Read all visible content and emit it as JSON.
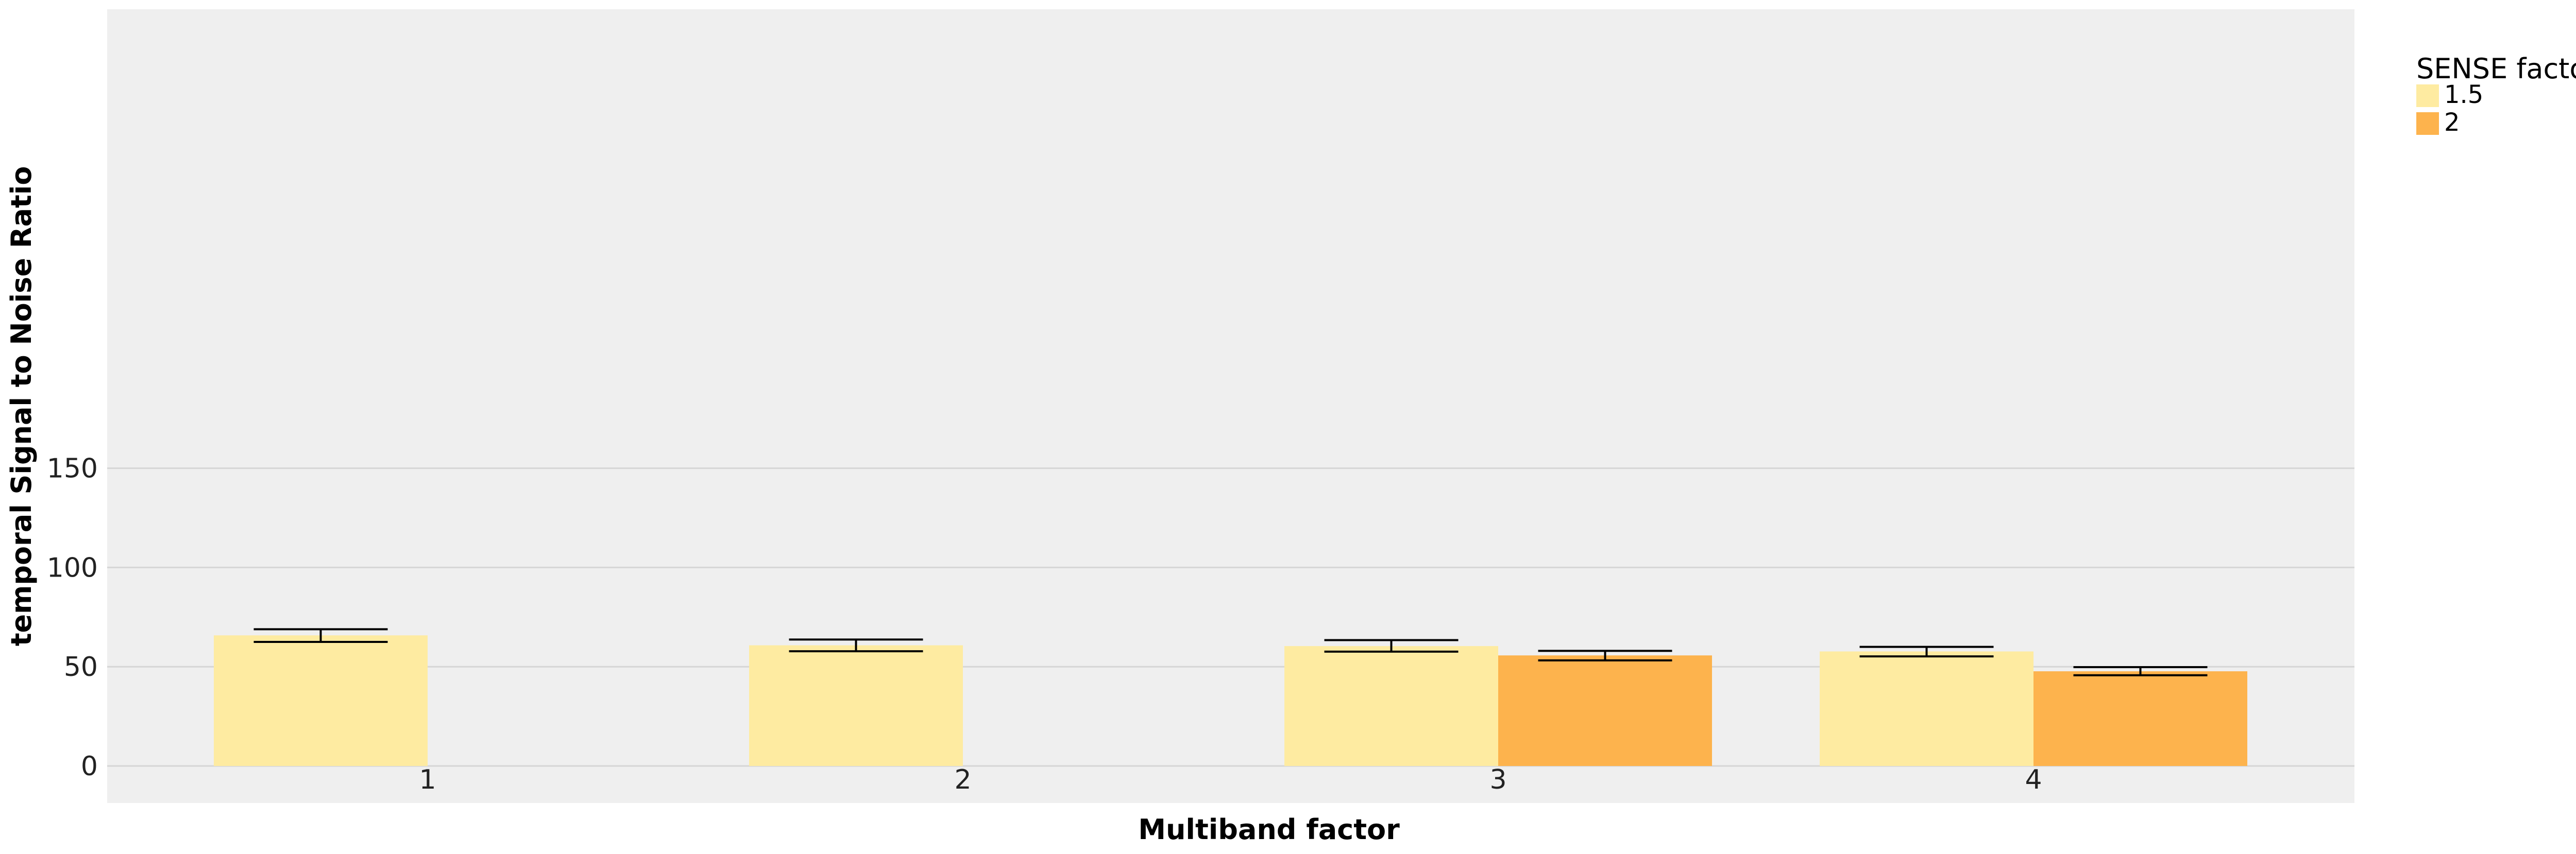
{
  "chart_data": {
    "type": "bar",
    "xlabel": "Multiband factor",
    "ylabel": "temporal Signal to Noise Ratio",
    "categories": [
      "1",
      "2",
      "3",
      "4"
    ],
    "ylim": [
      0,
      190
    ],
    "yticks": [
      0,
      50,
      100,
      150
    ],
    "grid": true,
    "legend": {
      "title": "SENSE factor",
      "placement": "right"
    },
    "series": [
      {
        "name": "1.5",
        "color": "#FEEBA1",
        "values": [
          65.8,
          60.8,
          60.4,
          57.7
        ],
        "error_low": [
          62.5,
          57.8,
          57.6,
          55.2
        ],
        "error_high": [
          68.9,
          63.7,
          63.4,
          60.0
        ]
      },
      {
        "name": "2",
        "color": "#FDB34D",
        "values": [
          null,
          null,
          55.7,
          47.7
        ],
        "error_low": [
          null,
          null,
          53.2,
          45.7
        ],
        "error_high": [
          null,
          null,
          58.0,
          49.8
        ]
      }
    ],
    "panel_color": "#EFEFEF",
    "grid_color": "#D6D6D6"
  }
}
